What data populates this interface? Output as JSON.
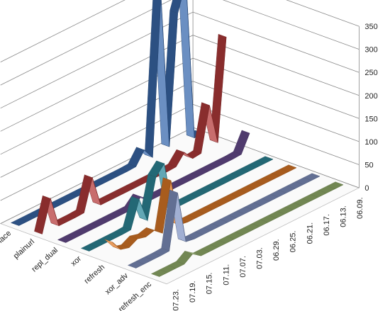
{
  "chart_data": {
    "type": "ribbon3d",
    "categories": [
      "06.09.",
      null,
      "06.13.",
      null,
      "06.17.",
      null,
      "06.21.",
      null,
      "06.25.",
      null,
      "06.29.",
      null,
      "07.03.",
      null,
      "07.07.",
      null,
      "07.11.",
      null,
      "07.15.",
      null,
      "07.19.",
      null,
      "07.23."
    ],
    "series": [
      {
        "name": "replace",
        "color": "#3a6aad",
        "values": [
          3,
          2,
          350,
          290,
          10,
          345,
          5,
          30,
          3,
          2,
          2,
          2,
          2,
          2,
          2,
          2,
          2,
          2,
          2,
          2,
          2,
          2,
          2
        ]
      },
      {
        "name": "plainurl",
        "color": "#b63c3c",
        "values": [
          230,
          10,
          100,
          5,
          3,
          25,
          3,
          2,
          2,
          2,
          2,
          2,
          2,
          2,
          2,
          2,
          70,
          3,
          2,
          2,
          2,
          70,
          2
        ]
      },
      {
        "name": "repl_dual",
        "color": "#6b4f93",
        "values": [
          40,
          3,
          2,
          2,
          2,
          2,
          2,
          2,
          2,
          2,
          2,
          2,
          2,
          20,
          2,
          2,
          2,
          2,
          2,
          2,
          2,
          2,
          2
        ]
      },
      {
        "name": "xor",
        "color": "#2f8a9c",
        "values": [
          2,
          2,
          2,
          2,
          2,
          2,
          2,
          2,
          2,
          2,
          2,
          2,
          2,
          110,
          90,
          5,
          60,
          3,
          2,
          2,
          2,
          2,
          2
        ]
      },
      {
        "name": "refresh",
        "color": "#e07b28",
        "values": [
          2,
          2,
          2,
          2,
          2,
          2,
          2,
          2,
          2,
          2,
          2,
          2,
          2,
          2,
          5,
          110,
          5,
          20,
          15,
          20,
          10,
          15,
          40
        ]
      },
      {
        "name": "xor_adv",
        "color": "#8294c4",
        "values": [
          2,
          2,
          2,
          2,
          2,
          2,
          2,
          2,
          2,
          2,
          2,
          2,
          2,
          2,
          2,
          2,
          5,
          120,
          3,
          2,
          2,
          2,
          2
        ]
      },
      {
        "name": "refresh_enc",
        "color": "#98b46e",
        "values": [
          2,
          2,
          2,
          2,
          2,
          2,
          2,
          2,
          2,
          2,
          2,
          2,
          2,
          2,
          2,
          2,
          2,
          2,
          15,
          2,
          2,
          2,
          2
        ]
      }
    ],
    "ylim": [
      0,
      350
    ],
    "yticks": [
      0,
      50,
      100,
      150,
      200,
      250,
      300,
      350
    ],
    "grid": true
  }
}
